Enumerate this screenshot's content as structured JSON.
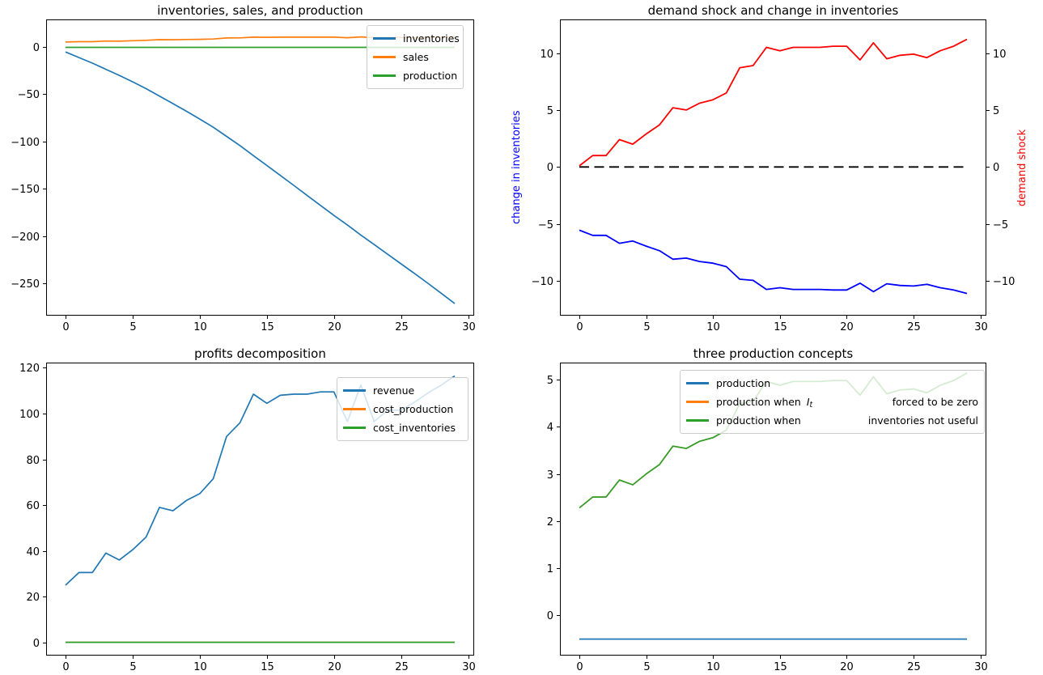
{
  "chart_data": [
    {
      "type": "line",
      "title": "inventories, sales, and production",
      "x": [
        0,
        1,
        2,
        3,
        4,
        5,
        6,
        7,
        8,
        9,
        10,
        11,
        12,
        13,
        14,
        15,
        16,
        17,
        18,
        19,
        20,
        21,
        22,
        23,
        24,
        25,
        26,
        27,
        28,
        29
      ],
      "xlim": [
        -1.45,
        30.45
      ],
      "ylim": [
        -284,
        29
      ],
      "xticks": [
        0,
        5,
        10,
        15,
        20,
        25,
        30
      ],
      "yticks": [
        0,
        -50,
        -100,
        -150,
        -200,
        -250
      ],
      "grid": false,
      "legend": {
        "position": "upper right",
        "items": [
          {
            "label": "inventories",
            "color": "#1f77b4"
          },
          {
            "label": "sales",
            "color": "#ff7f0e"
          },
          {
            "label": "production",
            "color": "#2ca02c"
          }
        ]
      },
      "series": [
        {
          "name": "inventories",
          "color": "#1f77b4",
          "values": [
            -5.4,
            -11.3,
            -17.2,
            -23.7,
            -30.1,
            -36.9,
            -44.1,
            -52,
            -59.9,
            -68,
            -76.3,
            -84.9,
            -94.6,
            -104.3,
            -114.9,
            -125.3,
            -135.8,
            -146.3,
            -156.9,
            -167.5,
            -178.1,
            -188.1,
            -198.8,
            -208.9,
            -219.1,
            -229.3,
            -239.4,
            -249.8,
            -260.4,
            -271.3
          ]
        },
        {
          "name": "sales",
          "color": "#ff7f0e",
          "values": [
            5.1,
            5.5,
            5.5,
            6.2,
            6,
            6.5,
            6.9,
            7.6,
            7.5,
            7.8,
            8,
            8.3,
            9.4,
            9.5,
            10.3,
            10.1,
            10.3,
            10.3,
            10.3,
            10.3,
            10.3,
            9.7,
            10.5,
            9.8,
            9.9,
            10,
            9.8,
            10.1,
            10.3,
            10.6
          ]
        },
        {
          "name": "production",
          "color": "#2ca02c",
          "values": [
            -0.5,
            -0.5,
            -0.5,
            -0.5,
            -0.5,
            -0.5,
            -0.5,
            -0.5,
            -0.5,
            -0.5,
            -0.5,
            -0.5,
            -0.5,
            -0.5,
            -0.5,
            -0.5,
            -0.5,
            -0.5,
            -0.5,
            -0.5,
            -0.5,
            -0.5,
            -0.5,
            -0.5,
            -0.5,
            -0.5,
            -0.5,
            -0.5,
            -0.5,
            -0.5
          ]
        }
      ]
    },
    {
      "type": "line",
      "title": "demand shock and change in inventories",
      "ylabel_left": "change in inventories",
      "ylabel_left_color": "#0000ff",
      "ylabel_right": "demand shock",
      "ylabel_right_color": "#ff0000",
      "x": [
        0,
        1,
        2,
        3,
        4,
        5,
        6,
        7,
        8,
        9,
        10,
        11,
        12,
        13,
        14,
        15,
        16,
        17,
        18,
        19,
        20,
        21,
        22,
        23,
        24,
        25,
        26,
        27,
        28,
        29
      ],
      "xlim": [
        -1.45,
        30.45
      ],
      "ylim": [
        -13.05,
        12.95
      ],
      "xticks": [
        0,
        5,
        10,
        15,
        20,
        25,
        30
      ],
      "yticks": [
        10,
        5,
        0,
        -5,
        -10
      ],
      "yticks_right": [
        10,
        5,
        0,
        -5,
        -10
      ],
      "grid": false,
      "series": [
        {
          "name": "zero line",
          "color": "#000000",
          "dash": true,
          "width": 1.8,
          "values": [
            0,
            0,
            0,
            0,
            0,
            0,
            0,
            0,
            0,
            0,
            0,
            0,
            0,
            0,
            0,
            0,
            0,
            0,
            0,
            0,
            0,
            0,
            0,
            0,
            0,
            0,
            0,
            0,
            0,
            0
          ]
        },
        {
          "name": "change in inventories",
          "color": "#0000ff",
          "width": 1.8,
          "values": [
            -5.55,
            -6,
            -6,
            -6.7,
            -6.5,
            -6.95,
            -7.35,
            -8.1,
            -8,
            -8.3,
            -8.45,
            -8.75,
            -9.85,
            -9.95,
            -10.75,
            -10.6,
            -10.75,
            -10.75,
            -10.75,
            -10.8,
            -10.8,
            -10.2,
            -10.95,
            -10.25,
            -10.4,
            -10.45,
            -10.3,
            -10.6,
            -10.8,
            -11.1
          ]
        },
        {
          "name": "demand shock",
          "color": "#ff0000",
          "width": 1.8,
          "values": [
            0.1,
            1,
            1,
            2.4,
            2,
            2.9,
            3.7,
            5.2,
            5,
            5.6,
            5.9,
            6.5,
            8.7,
            8.9,
            10.5,
            10.2,
            10.5,
            10.5,
            10.5,
            10.6,
            10.6,
            9.4,
            10.9,
            9.5,
            9.8,
            9.9,
            9.6,
            10.2,
            10.6,
            11.2
          ]
        }
      ]
    },
    {
      "type": "line",
      "title": "profits decomposition",
      "x": [
        0,
        1,
        2,
        3,
        4,
        5,
        6,
        7,
        8,
        9,
        10,
        11,
        12,
        13,
        14,
        15,
        16,
        17,
        18,
        19,
        20,
        21,
        22,
        23,
        24,
        25,
        26,
        27,
        28,
        29
      ],
      "xlim": [
        -1.45,
        30.45
      ],
      "ylim": [
        -5.8,
        122.3
      ],
      "xticks": [
        0,
        5,
        10,
        15,
        20,
        25,
        30
      ],
      "yticks": [
        0,
        20,
        40,
        60,
        80,
        100,
        120
      ],
      "grid": false,
      "legend": {
        "position": "upper right",
        "items": [
          {
            "label": "revenue",
            "color": "#1f77b4"
          },
          {
            "label": "cost_production",
            "color": "#ff7f0e"
          },
          {
            "label": "cost_inventories",
            "color": "#2ca02c"
          }
        ]
      },
      "series": [
        {
          "name": "revenue",
          "color": "#1f77b4",
          "values": [
            25,
            30.5,
            30.5,
            39,
            36,
            40.5,
            46,
            59,
            57.5,
            62,
            65,
            71.5,
            90,
            96,
            108.5,
            104.5,
            108,
            108.5,
            108.5,
            109.5,
            109.5,
            96.5,
            112.5,
            96.5,
            101.5,
            101.5,
            105,
            109,
            112.5,
            116.5
          ]
        },
        {
          "name": "cost_production",
          "color": "#ff7f0e",
          "values": [
            0,
            0,
            0,
            0,
            0,
            0,
            0,
            0,
            0,
            0,
            0,
            0,
            0,
            0,
            0,
            0,
            0,
            0,
            0,
            0,
            0,
            0,
            0,
            0,
            0,
            0,
            0,
            0,
            0,
            0
          ]
        },
        {
          "name": "cost_inventories",
          "color": "#2ca02c",
          "values": [
            0,
            0,
            0,
            0,
            0,
            0,
            0,
            0,
            0,
            0,
            0,
            0,
            0,
            0,
            0,
            0,
            0,
            0,
            0,
            0,
            0,
            0,
            0,
            0,
            0,
            0,
            0,
            0,
            0,
            0
          ]
        }
      ]
    },
    {
      "type": "line",
      "title": "three production concepts",
      "x": [
        0,
        1,
        2,
        3,
        4,
        5,
        6,
        7,
        8,
        9,
        10,
        11,
        12,
        13,
        14,
        15,
        16,
        17,
        18,
        19,
        20,
        21,
        22,
        23,
        24,
        25,
        26,
        27,
        28,
        29
      ],
      "xlim": [
        -1.45,
        30.45
      ],
      "ylim": [
        -0.85,
        5.36
      ],
      "xticks": [
        0,
        5,
        10,
        15,
        20,
        25,
        30
      ],
      "yticks": [
        0,
        1,
        2,
        3,
        4,
        5
      ],
      "grid": false,
      "legend": {
        "position": "upper center",
        "items": [
          {
            "label": "production",
            "color": "#1f77b4"
          },
          {
            "label": "production when",
            "math_base": "I",
            "math_sub": "t",
            "label2": "forced to be zero",
            "color": "#ff7f0e"
          },
          {
            "label": "production when",
            "label2": "inventories not useful",
            "color": "#2ca02c"
          }
        ]
      },
      "series": [
        {
          "name": "production",
          "color": "#1f77b4",
          "values": [
            -0.5,
            -0.5,
            -0.5,
            -0.5,
            -0.5,
            -0.5,
            -0.5,
            -0.5,
            -0.5,
            -0.5,
            -0.5,
            -0.5,
            -0.5,
            -0.5,
            -0.5,
            -0.5,
            -0.5,
            -0.5,
            -0.5,
            -0.5,
            -0.5,
            -0.5,
            -0.5,
            -0.5,
            -0.5,
            -0.5,
            -0.5,
            -0.5,
            -0.5,
            -0.5
          ]
        },
        {
          "name": "production when I_t forced to be zero",
          "color": "#ff7f0e",
          "values": [
            2.28,
            2.51,
            2.51,
            2.87,
            2.77,
            3,
            3.2,
            3.59,
            3.54,
            3.69,
            3.77,
            3.93,
            4.49,
            4.54,
            4.96,
            4.88,
            4.96,
            4.96,
            4.96,
            4.98,
            4.98,
            4.67,
            5.06,
            4.7,
            4.78,
            4.8,
            4.72,
            4.88,
            4.98,
            5.14
          ]
        },
        {
          "name": "production when inventories not useful",
          "color": "#2ca02c",
          "values": [
            2.28,
            2.51,
            2.51,
            2.87,
            2.77,
            3,
            3.2,
            3.59,
            3.54,
            3.69,
            3.77,
            3.93,
            4.49,
            4.54,
            4.96,
            4.88,
            4.96,
            4.96,
            4.96,
            4.98,
            4.98,
            4.67,
            5.06,
            4.7,
            4.78,
            4.8,
            4.72,
            4.88,
            4.98,
            5.14
          ]
        }
      ]
    }
  ]
}
